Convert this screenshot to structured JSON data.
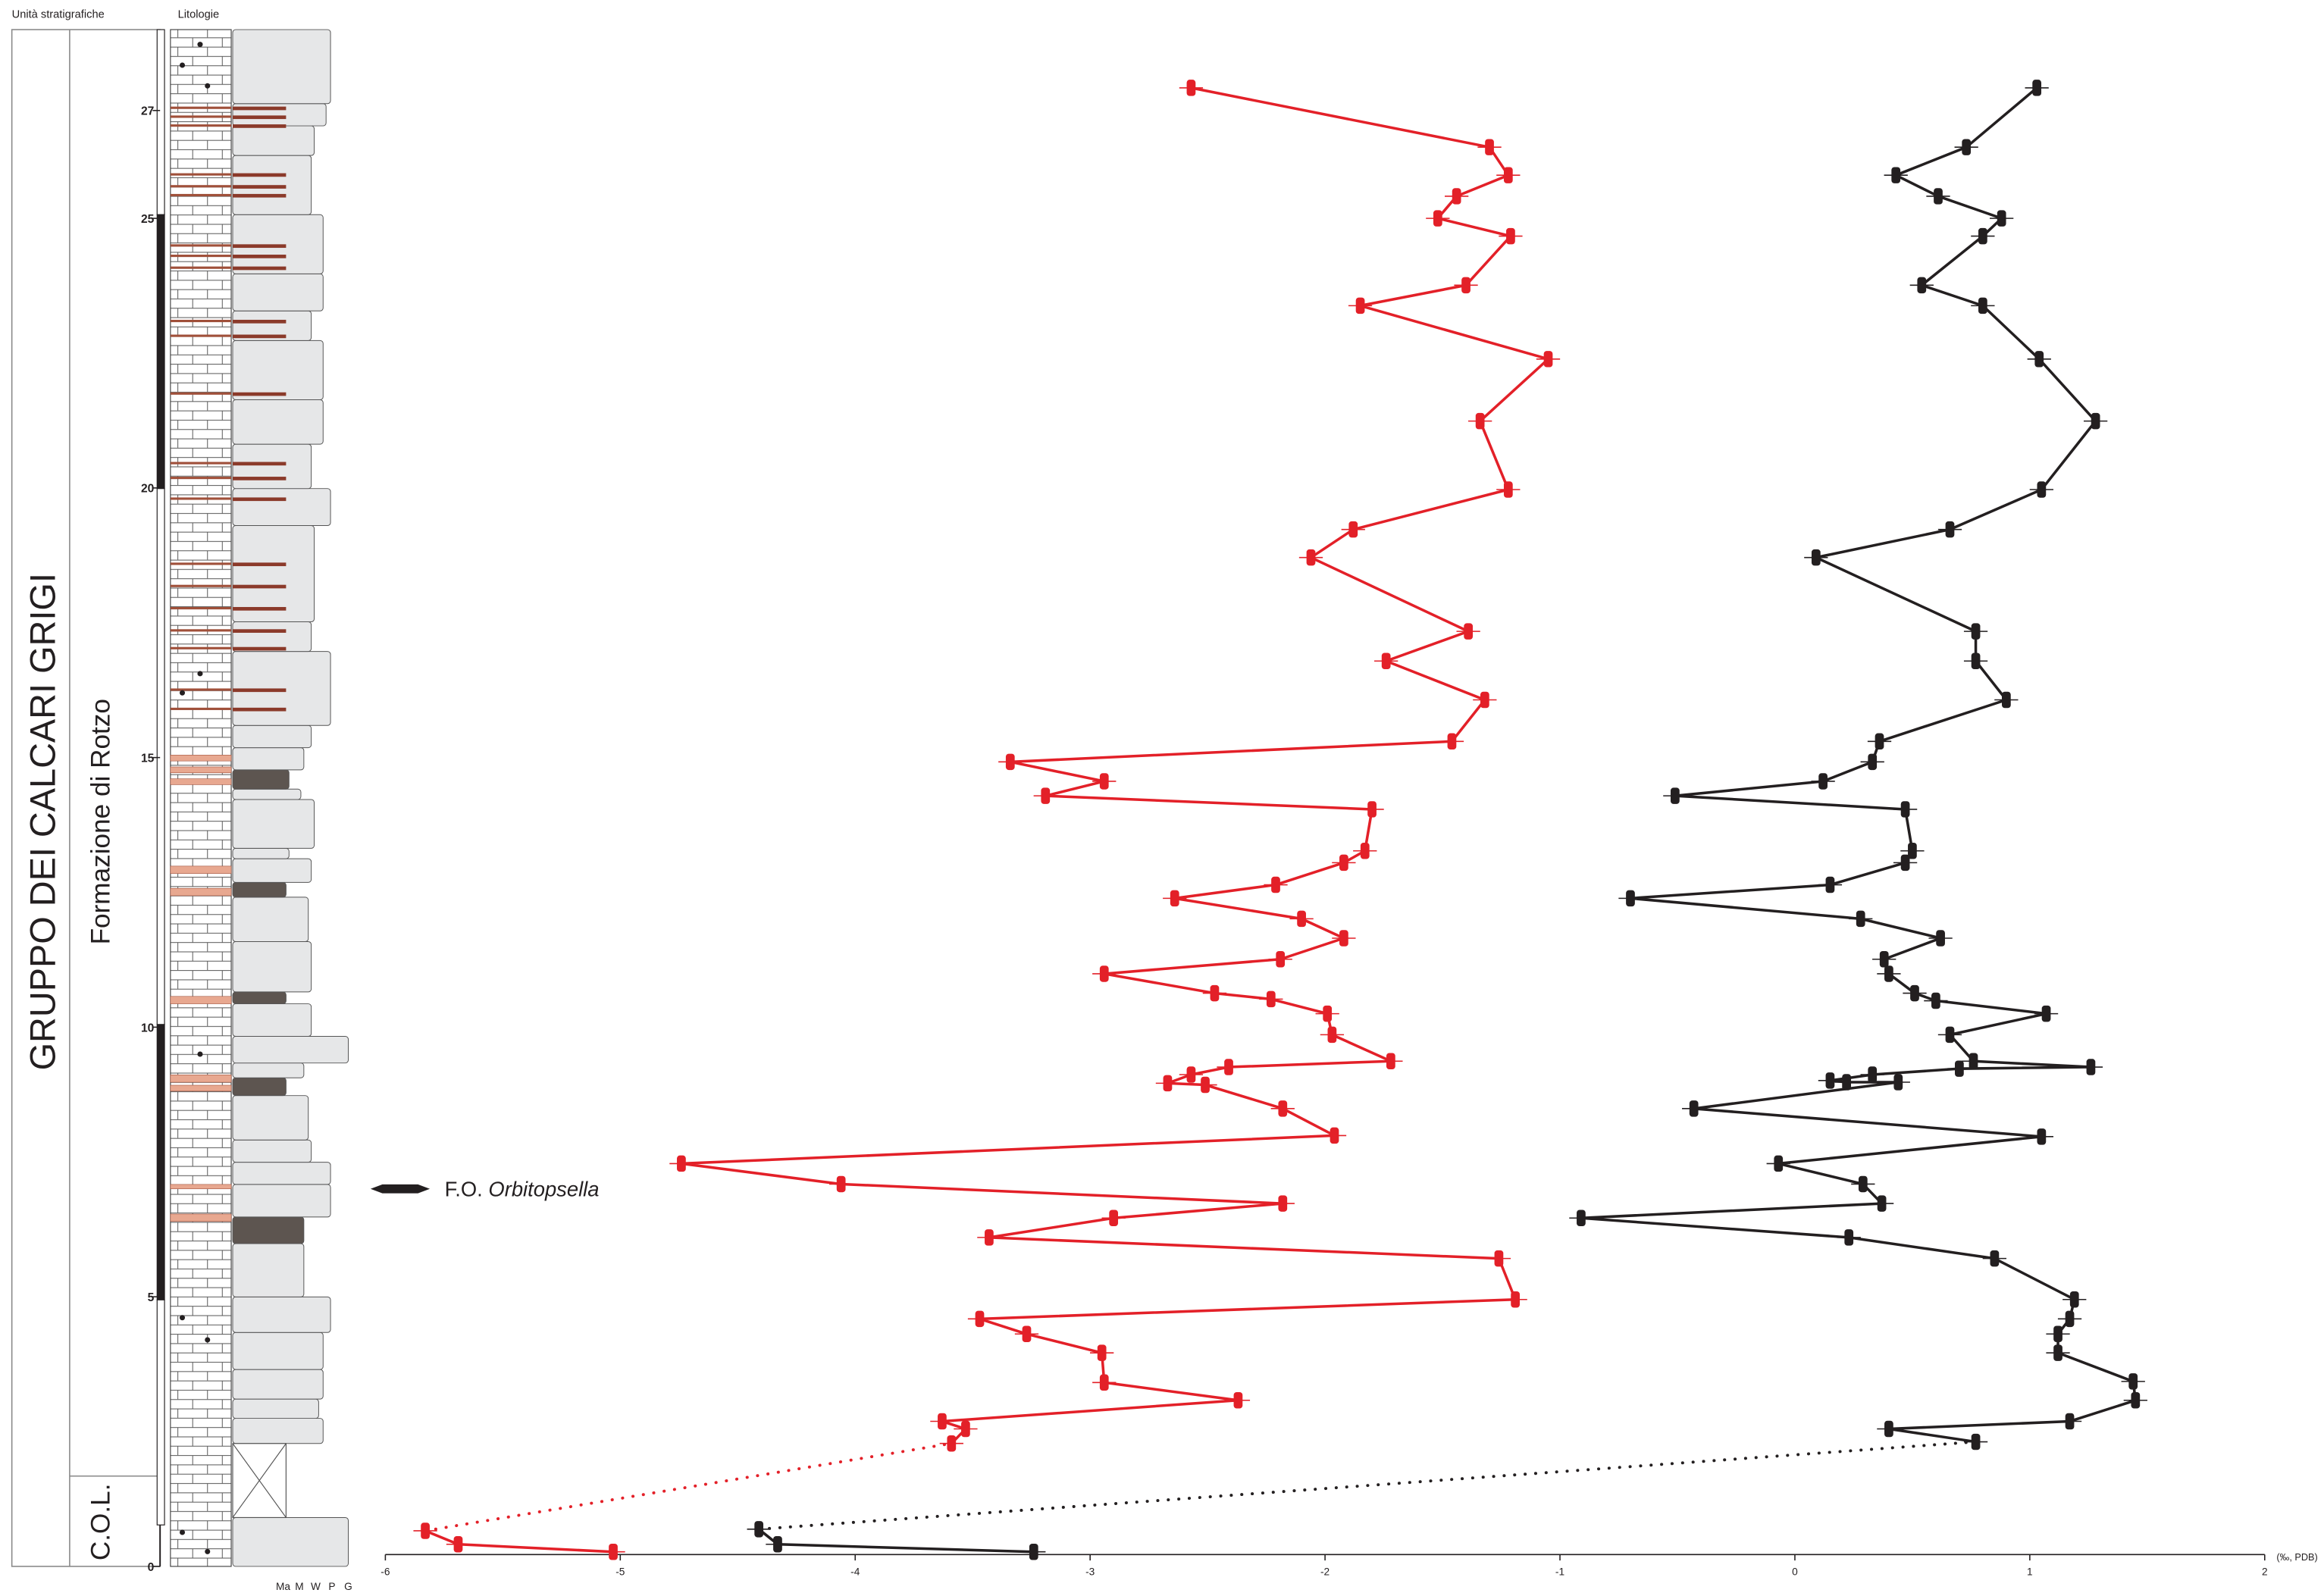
{
  "header": {
    "units_title": "Unità stratigrafiche",
    "lithology_title": "Litologie"
  },
  "units": {
    "group": "GRUPPO DEI CALCARI GRIGI",
    "formation": "Formazione di Rotzo",
    "lower": "C.O.L."
  },
  "textures": [
    "Ma",
    "M",
    "W",
    "P",
    "G"
  ],
  "annotation": {
    "prefix": "F.O.",
    "taxon": "Orbitopsella"
  },
  "chart_data": {
    "type": "line",
    "x_label": "(‰, PDB)",
    "xlim": [
      -6,
      2
    ],
    "xticks": [
      -6,
      -5,
      -4,
      -3,
      -2,
      -1,
      0,
      1,
      2
    ],
    "ylim": [
      0,
      28.5
    ],
    "yticks": [
      0,
      5,
      10,
      15,
      20,
      25,
      27
    ],
    "gap_style": "dotted",
    "series": [
      {
        "color": "#e32028",
        "x": [
          -5.03,
          -5.69,
          -5.83,
          null,
          -3.59,
          -3.53,
          -3.63,
          -2.37,
          -2.94,
          -2.95,
          -3.27,
          -3.47,
          -1.19,
          -1.26,
          -3.43,
          -2.9,
          -2.18,
          -4.06,
          -4.74,
          -1.96,
          -2.18,
          -2.51,
          -2.67,
          -2.57,
          -2.41,
          -1.72,
          -1.97,
          -1.99,
          -2.23,
          -2.47,
          -2.94,
          -2.19,
          -1.92,
          -2.1,
          -2.64,
          -2.21,
          -1.92,
          -1.83,
          -1.8,
          -3.19,
          -2.94,
          -3.34,
          -1.46,
          -1.32,
          -1.74,
          -1.39,
          -2.06,
          -1.88,
          -1.22,
          -1.34,
          -1.05,
          -1.85,
          -1.4,
          -1.21,
          -1.52,
          -1.44,
          -1.22,
          -1.3,
          -2.57
        ],
        "y": [
          0.27,
          0.41,
          0.66,
          null,
          2.28,
          2.55,
          2.69,
          3.08,
          3.41,
          3.96,
          4.31,
          4.59,
          4.95,
          5.71,
          6.1,
          6.46,
          6.73,
          7.09,
          7.47,
          7.99,
          8.49,
          8.93,
          8.96,
          9.12,
          9.26,
          9.37,
          9.86,
          10.25,
          10.52,
          10.63,
          10.99,
          11.26,
          11.65,
          12.01,
          12.39,
          12.64,
          13.05,
          13.27,
          14.04,
          14.29,
          14.56,
          14.92,
          15.3,
          16.07,
          16.79,
          17.34,
          18.71,
          19.23,
          19.97,
          21.24,
          22.39,
          23.38,
          23.76,
          24.67,
          25,
          25.41,
          25.8,
          26.32,
          27.42
        ]
      },
      {
        "color": "#231f20",
        "x": [
          -3.24,
          -4.33,
          -4.41,
          null,
          0.77,
          0.4,
          1.17,
          1.45,
          1.44,
          1.12,
          1.12,
          1.17,
          1.19,
          0.85,
          0.23,
          -0.91,
          0.37,
          0.29,
          -0.07,
          1.05,
          -0.43,
          0.44,
          0.22,
          0.15,
          0.33,
          0.7,
          1.26,
          0.76,
          0.66,
          1.07,
          0.6,
          0.51,
          0.4,
          0.38,
          0.62,
          0.28,
          -0.7,
          0.15,
          0.47,
          0.5,
          0.47,
          -0.51,
          0.12,
          0.33,
          0.36,
          0.9,
          0.77,
          0.77,
          0.09,
          0.66,
          1.05,
          1.28,
          1.04,
          0.8,
          0.54,
          0.8,
          0.88,
          0.61,
          0.43,
          0.73,
          1.03
        ],
        "y": [
          0.27,
          0.41,
          0.69,
          null,
          2.31,
          2.55,
          2.69,
          3.08,
          3.43,
          3.96,
          4.31,
          4.59,
          4.95,
          5.71,
          6.1,
          6.46,
          6.73,
          7.09,
          7.47,
          7.97,
          8.49,
          8.98,
          8.98,
          9.01,
          9.12,
          9.23,
          9.26,
          9.37,
          9.86,
          10.25,
          10.49,
          10.63,
          10.99,
          11.26,
          11.65,
          12.01,
          12.39,
          12.64,
          13.05,
          13.27,
          14.04,
          14.29,
          14.56,
          14.92,
          15.3,
          16.07,
          16.79,
          17.34,
          18.71,
          19.23,
          19.97,
          21.24,
          22.39,
          23.38,
          23.76,
          24.67,
          25,
          25.41,
          25.8,
          26.32,
          27.42
        ]
      }
    ]
  }
}
